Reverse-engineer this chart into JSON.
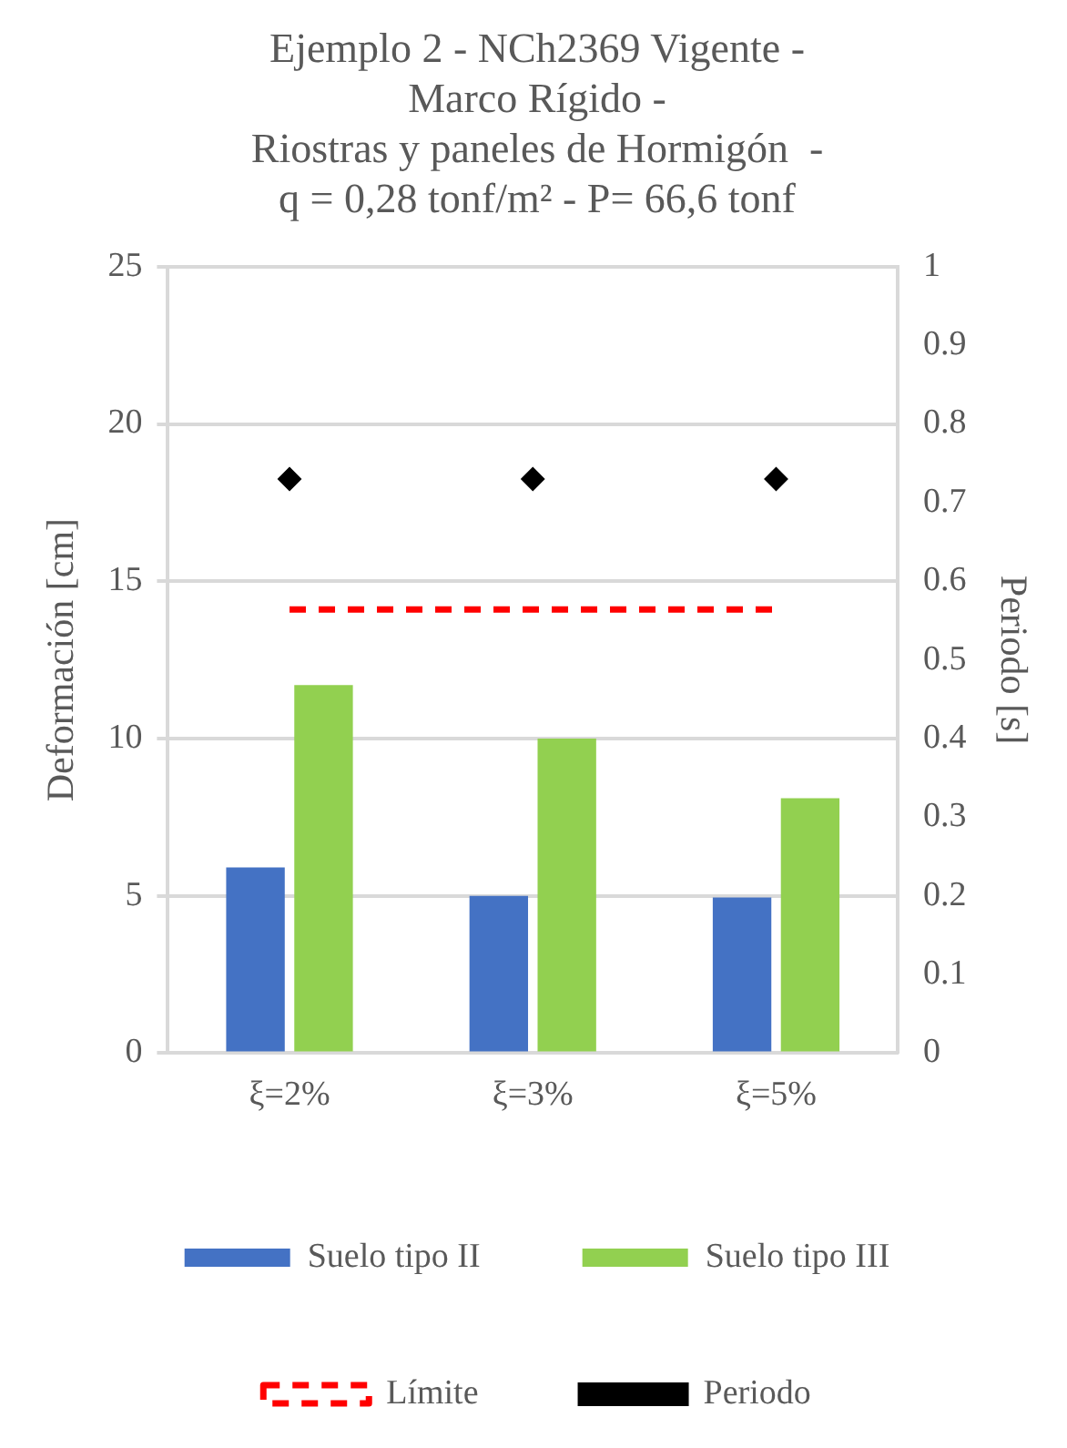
{
  "chart_data": {
    "type": "bar",
    "title": "Ejemplo 2 - NCh2369 Vigente -\nMarco Rígido -\nRiostras y paneles de Hormigón  -\nq = 0,28 tonf/m² - P= 66,6 tonf",
    "ylabel": "Deformación [cm]",
    "y2label": "Periodo [s]",
    "categories": [
      "ξ=2%",
      "ξ=3%",
      "ξ=5%"
    ],
    "series": [
      {
        "name": "Suelo tipo II",
        "color": "#4472c4",
        "values": [
          5.9,
          5.0,
          4.95
        ]
      },
      {
        "name": "Suelo tipo III",
        "color": "#92d050",
        "values": [
          11.7,
          10.0,
          8.1
        ]
      },
      {
        "name": "Límite",
        "type": "line",
        "color": "#ff0000",
        "line_style": "dashed",
        "marker": "none",
        "values": [
          14.1,
          14.1,
          14.1
        ]
      },
      {
        "name": "Periodo",
        "type": "scatter",
        "axis": "y2",
        "color": "#000000",
        "marker": "diamond",
        "values": [
          0.73,
          0.73,
          0.73
        ]
      }
    ],
    "ylim": [
      0,
      25
    ],
    "yticks": [
      0,
      5,
      10,
      15,
      20,
      25
    ],
    "y2lim": [
      0,
      1
    ],
    "y2ticks": [
      0,
      0.1,
      0.2,
      0.3,
      0.4,
      0.5,
      0.6,
      0.7,
      0.8,
      0.9,
      1
    ],
    "grid": "y",
    "legend": "bottom"
  }
}
